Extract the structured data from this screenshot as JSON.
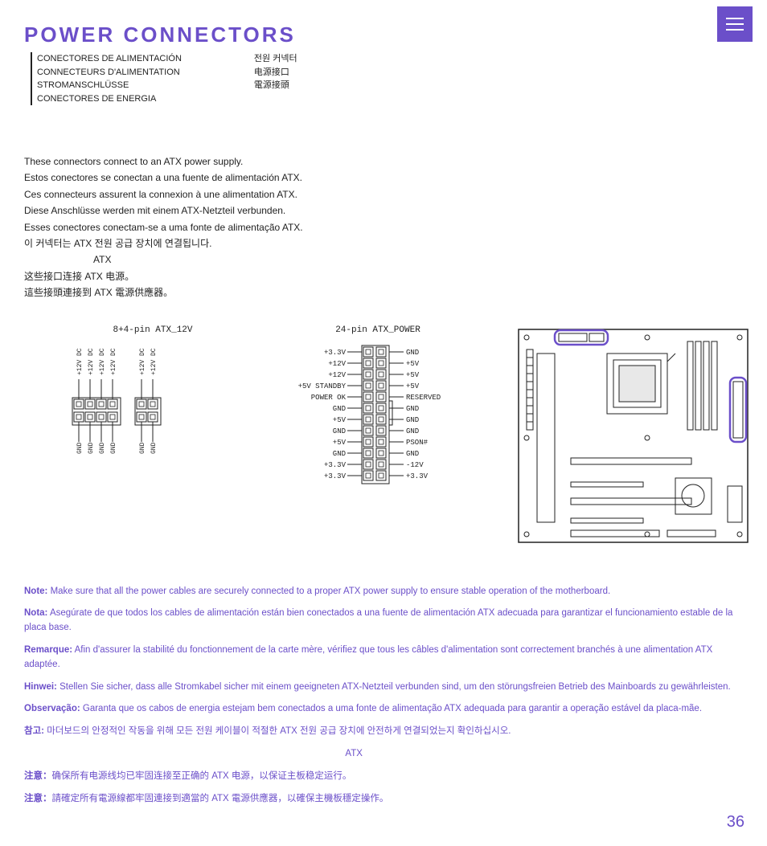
{
  "title": "POWER CONNECTORS",
  "menu": "menu",
  "translations": {
    "left": [
      "CONECTORES DE ALIMENTACIÓN",
      "CONNECTEURS D'ALIMENTATION",
      "STROMANSCHLÜSSE",
      "CONECTORES DE ENERGIA"
    ],
    "right": [
      "전원 커넥터",
      "",
      "电源接口",
      "電源接頭"
    ]
  },
  "intro": [
    "These connectors connect to an ATX power supply.",
    "Estos conectores se conectan a una fuente de alimentación ATX.",
    "Ces connecteurs assurent la connexion à une alimentation ATX.",
    "Diese Anschlüsse werden mit einem ATX-Netzteil verbunden.",
    "Esses conectores conectam-se a uma fonte de alimentação ATX.",
    "이 커넥터는 ATX 전원 공급 장치에 연결됩니다.",
    "                          ATX",
    "这些接口连接 ATX 电源。",
    "這些接頭連接到 ATX 電源供應器。"
  ],
  "conn12v": {
    "title": "8+4-pin ATX_12V",
    "top": [
      "+12V DC",
      "+12V DC",
      "+12V DC",
      "+12V DC",
      "+12V DC",
      "+12V DC"
    ],
    "bottom": [
      "GND",
      "GND",
      "GND",
      "GND",
      "GND",
      "GND"
    ]
  },
  "conn24": {
    "title": "24-pin ATX_POWER",
    "left": [
      "+3.3V",
      "+12V",
      "+12V",
      "+5V STANDBY",
      "POWER OK",
      "GND",
      "+5V",
      "GND",
      "+5V",
      "GND",
      "+3.3V",
      "+3.3V"
    ],
    "right": [
      "GND",
      "+5V",
      "+5V",
      "+5V",
      "RESERVED",
      "GND",
      "GND",
      "GND",
      "PSON#",
      "GND",
      "-12V",
      "+3.3V"
    ]
  },
  "notes": [
    {
      "lbl": "Note:",
      "txt": " Make sure that all the power cables are securely connected to a proper ATX power supply to ensure stable operation of the motherboard."
    },
    {
      "lbl": "Nota:",
      "txt": " Asegúrate de que todos los cables de alimentación están bien conectados a una fuente de alimentación ATX adecuada para garantizar el funcionamiento estable de la placa base."
    },
    {
      "lbl": "Remarque:",
      "txt": " Afin d'assurer la stabilité du fonctionnement de la carte mère, vérifiez que tous les câbles d'alimentation sont correctement branchés à une alimentation ATX adaptée."
    },
    {
      "lbl": "Hinwei:",
      "txt": " Stellen Sie sicher, dass alle Stromkabel sicher mit einem geeigneten ATX-Netzteil verbunden sind, um den störungsfreien Betrieb des Mainboards zu gewährleisten."
    },
    {
      "lbl": "Observação:",
      "txt": " Garanta que os cabos de energia estejam bem conectados a uma fonte de alimentação ATX adequada para garantir a operação estável da placa-mãe."
    },
    {
      "lbl": "참고:",
      "txt": " 마더보드의 안정적인 작동을 위해 모든 전원 케이블이 적절한 ATX 전원 공급 장치에 안전하게 연결되었는지 확인하십시오."
    },
    {
      "lbl": "",
      "txt": "                                                                                                                             ATX"
    },
    {
      "lbl": "注意：",
      "txt": "确保所有电源线均已牢固连接至正确的 ATX 电源，以保证主板稳定运行。"
    },
    {
      "lbl": "注意：",
      "txt": "請確定所有電源線都牢固連接到適當的 ATX 電源供應器，以確保主機板穩定操作。"
    }
  ],
  "pagenum": "36",
  "colors": {
    "accent": "#6b4fc9"
  }
}
